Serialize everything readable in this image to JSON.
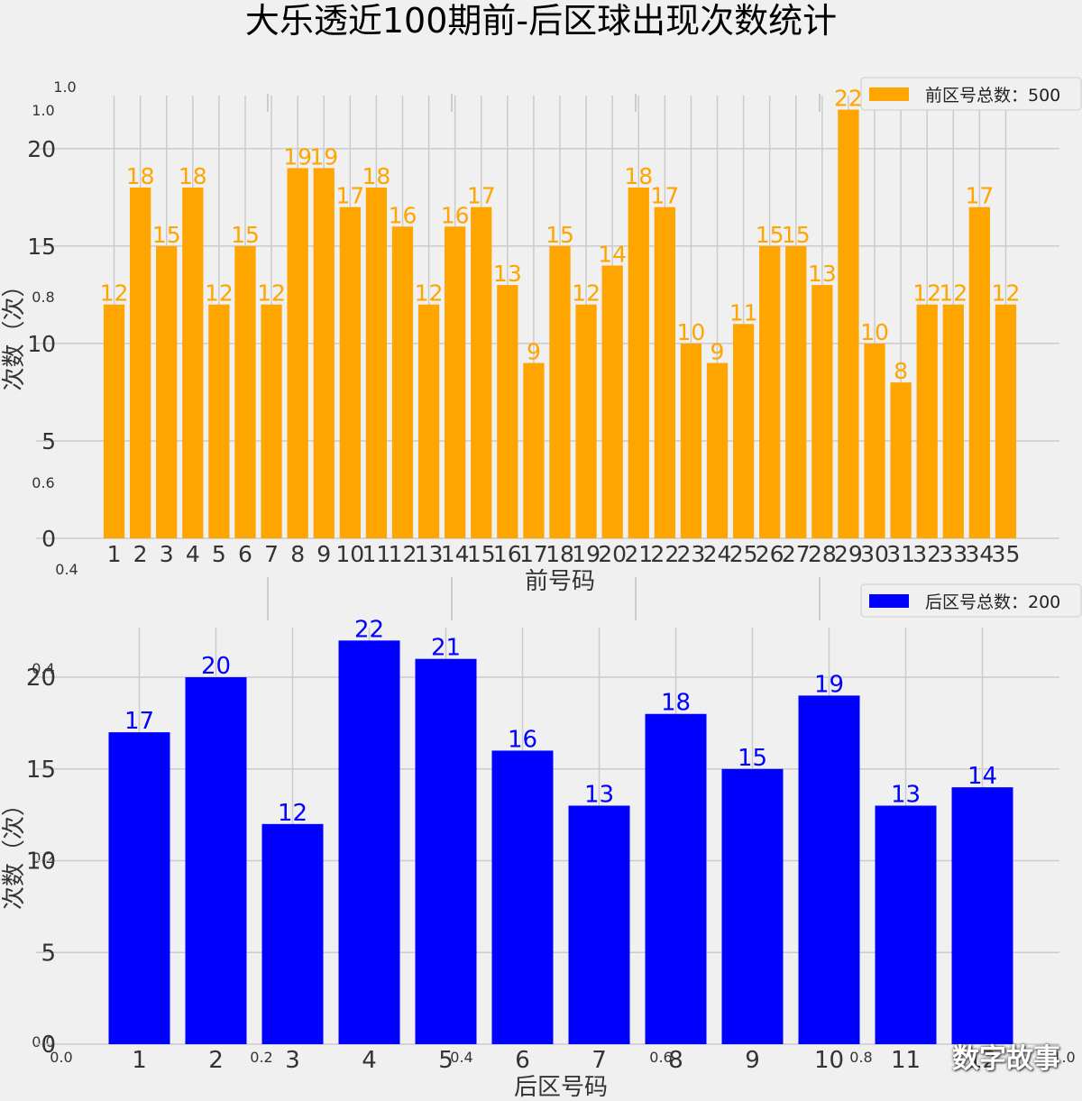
{
  "title": "大乐透近100期前-后区球出现次数统计",
  "watermark": "数字故事",
  "chart_data": [
    {
      "type": "bar",
      "title": "",
      "xlabel": "前号码",
      "ylabel": "次数（次）",
      "categories": [
        "1",
        "2",
        "3",
        "4",
        "5",
        "6",
        "7",
        "8",
        "9",
        "10",
        "11",
        "12",
        "13",
        "14",
        "15",
        "16",
        "17",
        "18",
        "19",
        "20",
        "21",
        "22",
        "23",
        "24",
        "25",
        "26",
        "27",
        "28",
        "29",
        "30",
        "31",
        "32",
        "33",
        "34",
        "35"
      ],
      "values": [
        12,
        18,
        15,
        18,
        12,
        15,
        12,
        19,
        19,
        17,
        18,
        16,
        12,
        16,
        17,
        13,
        9,
        15,
        12,
        14,
        18,
        17,
        10,
        9,
        11,
        15,
        15,
        13,
        22,
        10,
        8,
        12,
        12,
        17,
        12
      ],
      "ylim": [
        0,
        23
      ],
      "yticks": [
        0,
        5,
        10,
        15,
        20
      ],
      "legend": "前区号总数：500",
      "legend_position": "top-right",
      "color": "#ffa500",
      "label_color": "#ffa500",
      "grid": true
    },
    {
      "type": "bar",
      "title": "",
      "xlabel": "后区号码",
      "ylabel": "次数（次）",
      "categories": [
        "1",
        "2",
        "3",
        "4",
        "5",
        "6",
        "7",
        "8",
        "9",
        "10",
        "11",
        "12"
      ],
      "values": [
        17,
        20,
        12,
        22,
        21,
        16,
        13,
        18,
        15,
        19,
        13,
        14
      ],
      "ylim": [
        0,
        23
      ],
      "yticks": [
        0,
        5,
        10,
        15,
        20
      ],
      "legend": "后区号总数：200",
      "legend_position": "top-right",
      "color": "#0000ff",
      "label_color": "#0000ff",
      "grid": true
    }
  ],
  "ghost_axis": {
    "y_ticks": [
      "1.0",
      "1.0",
      "0.8",
      "0.6",
      "0.4",
      "0.4",
      "0.2",
      "0.0"
    ],
    "x_ticks": [
      "0.0",
      "0.2",
      "0.4",
      "0.6",
      "0.8",
      "1.0"
    ]
  }
}
